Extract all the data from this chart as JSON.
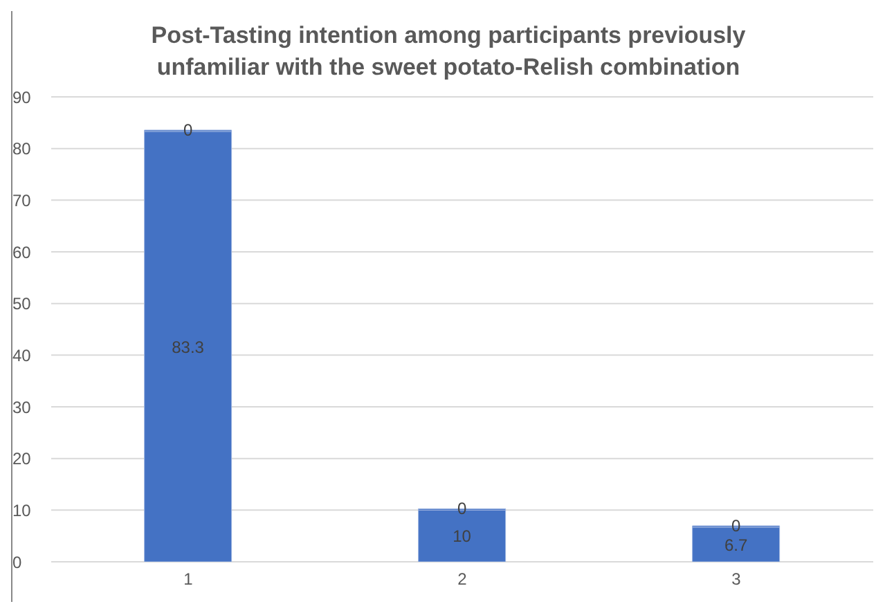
{
  "chart_data": {
    "type": "bar",
    "title": "Post-Tasting intention among participants previously unfamiliar with the sweet potato-Relish combination",
    "categories": [
      "1",
      "2",
      "3"
    ],
    "stacked": true,
    "series": [
      {
        "color": "#4472c4",
        "values": [
          83.3,
          10,
          6.7
        ]
      },
      {
        "color": "#4472c4",
        "values": [
          0,
          0,
          0
        ]
      }
    ],
    "ylim": [
      0,
      90
    ],
    "yticks": [
      0,
      10,
      20,
      30,
      40,
      50,
      60,
      70,
      80,
      90
    ],
    "grid": "y",
    "data_labels": true
  }
}
